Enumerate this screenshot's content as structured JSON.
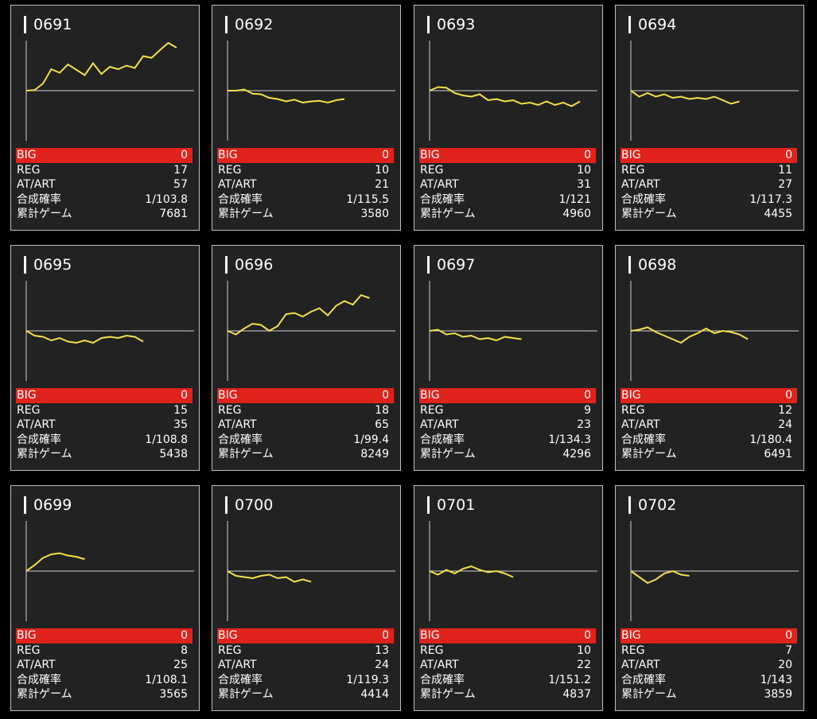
{
  "labels": {
    "big": "BIG",
    "reg": "REG",
    "at": "AT/ART",
    "prob": "合成確率",
    "games": "累計ゲーム"
  },
  "colors": {
    "line": "#f3e04a",
    "big_row": "#e0221c",
    "axis": "#d0d0d0",
    "card_bg": "#222222"
  },
  "cards": [
    {
      "id": "0691",
      "big": "0",
      "reg": "17",
      "at": "57",
      "prob": "1/103.8",
      "games": "7681",
      "chart_data": {
        "type": "line",
        "values": [
          0,
          1,
          12,
          36,
          30,
          44,
          35,
          26,
          46,
          28,
          40,
          36,
          42,
          38,
          58,
          55,
          68,
          80,
          72
        ]
      }
    },
    {
      "id": "0692",
      "big": "0",
      "reg": "10",
      "at": "21",
      "prob": "1/115.5",
      "games": "3580",
      "chart_data": {
        "type": "line",
        "values": [
          0,
          0,
          2,
          -5,
          -6,
          -12,
          -14,
          -18,
          -15,
          -20,
          -18,
          -17,
          -20,
          -16,
          -14
        ]
      }
    },
    {
      "id": "0693",
      "big": "0",
      "reg": "10",
      "at": "31",
      "prob": "1/121",
      "games": "4960",
      "chart_data": {
        "type": "line",
        "values": [
          0,
          6,
          5,
          -4,
          -8,
          -10,
          -6,
          -16,
          -14,
          -18,
          -16,
          -22,
          -20,
          -24,
          -18,
          -24,
          -20,
          -26,
          -18
        ]
      }
    },
    {
      "id": "0694",
      "big": "0",
      "reg": "11",
      "at": "27",
      "prob": "1/117.3",
      "games": "4455",
      "chart_data": {
        "type": "line",
        "values": [
          0,
          -10,
          -4,
          -10,
          -6,
          -12,
          -10,
          -14,
          -12,
          -14,
          -10,
          -16,
          -22,
          -18
        ]
      }
    },
    {
      "id": "0695",
      "big": "0",
      "reg": "15",
      "at": "35",
      "prob": "1/108.8",
      "games": "5438",
      "chart_data": {
        "type": "line",
        "values": [
          0,
          -8,
          -10,
          -16,
          -12,
          -18,
          -20,
          -16,
          -20,
          -12,
          -10,
          -12,
          -8,
          -10,
          -18
        ]
      }
    },
    {
      "id": "0696",
      "big": "0",
      "reg": "18",
      "at": "65",
      "prob": "1/99.4",
      "games": "8249",
      "chart_data": {
        "type": "line",
        "values": [
          0,
          -6,
          4,
          12,
          10,
          0,
          8,
          28,
          30,
          24,
          32,
          38,
          26,
          42,
          50,
          44,
          60,
          55
        ]
      }
    },
    {
      "id": "0697",
      "big": "0",
      "reg": "9",
      "at": "23",
      "prob": "1/134.3",
      "games": "4296",
      "chart_data": {
        "type": "line",
        "values": [
          0,
          2,
          -6,
          -4,
          -10,
          -8,
          -14,
          -12,
          -16,
          -10,
          -12,
          -14
        ]
      }
    },
    {
      "id": "0698",
      "big": "0",
      "reg": "12",
      "at": "24",
      "prob": "1/180.4",
      "games": "6491",
      "chart_data": {
        "type": "line",
        "values": [
          0,
          2,
          6,
          -2,
          -8,
          -14,
          -20,
          -10,
          -4,
          4,
          -4,
          0,
          -2,
          -6,
          -14
        ]
      }
    },
    {
      "id": "0699",
      "big": "0",
      "reg": "8",
      "at": "25",
      "prob": "1/108.1",
      "games": "3565",
      "chart_data": {
        "type": "line",
        "values": [
          0,
          10,
          22,
          28,
          30,
          26,
          24,
          20
        ]
      }
    },
    {
      "id": "0700",
      "big": "0",
      "reg": "13",
      "at": "24",
      "prob": "1/119.3",
      "games": "4414",
      "chart_data": {
        "type": "line",
        "values": [
          0,
          -8,
          -10,
          -12,
          -8,
          -6,
          -12,
          -10,
          -18,
          -14,
          -18
        ]
      }
    },
    {
      "id": "0701",
      "big": "0",
      "reg": "10",
      "at": "22",
      "prob": "1/151.2",
      "games": "4837",
      "chart_data": {
        "type": "line",
        "values": [
          0,
          -6,
          2,
          -4,
          4,
          8,
          2,
          -2,
          0,
          -4,
          -10
        ]
      }
    },
    {
      "id": "0702",
      "big": "0",
      "reg": "7",
      "at": "20",
      "prob": "1/143",
      "games": "3859",
      "chart_data": {
        "type": "line",
        "values": [
          0,
          -10,
          -20,
          -14,
          -4,
          0,
          -6,
          -8
        ]
      }
    }
  ]
}
